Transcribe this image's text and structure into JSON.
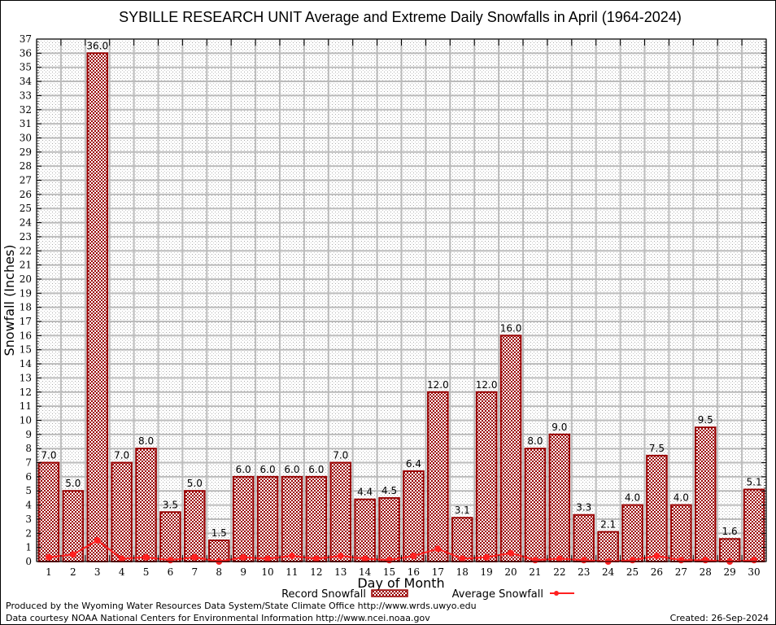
{
  "chart_data": {
    "type": "bar",
    "title": "SYBILLE RESEARCH UNIT Average and Extreme Daily Snowfalls in April (1964-2024)",
    "xlabel": "Day of Month",
    "ylabel": "Snowfall (Inches)",
    "ylim": [
      0,
      37
    ],
    "yticks": [
      0,
      1,
      2,
      3,
      4,
      5,
      6,
      7,
      8,
      9,
      10,
      11,
      12,
      13,
      14,
      15,
      16,
      17,
      18,
      19,
      20,
      21,
      22,
      23,
      24,
      25,
      26,
      27,
      28,
      29,
      30,
      31,
      32,
      33,
      34,
      35,
      36,
      37
    ],
    "categories": [
      "1",
      "2",
      "3",
      "4",
      "5",
      "6",
      "7",
      "8",
      "9",
      "10",
      "11",
      "12",
      "13",
      "14",
      "15",
      "16",
      "17",
      "18",
      "19",
      "20",
      "21",
      "22",
      "23",
      "24",
      "25",
      "26",
      "27",
      "28",
      "29",
      "30"
    ],
    "grid": true,
    "legend_position": "bottom-center",
    "series": [
      {
        "name": "Record Snowfall",
        "type": "bar",
        "color": "#990000",
        "values": [
          7.0,
          5.0,
          36.0,
          7.0,
          8.0,
          3.5,
          5.0,
          1.5,
          6.0,
          6.0,
          6.0,
          6.0,
          7.0,
          4.4,
          4.5,
          6.4,
          12.0,
          3.1,
          12.0,
          16.0,
          8.0,
          9.0,
          3.3,
          2.1,
          4.0,
          7.5,
          4.0,
          9.5,
          1.6,
          5.1
        ],
        "labels": [
          "7.0",
          "5.0",
          "36.0",
          "7.0",
          "8.0",
          "3.5",
          "5.0",
          "1.5",
          "6.0",
          "6.0",
          "6.0",
          "6.0",
          "7.0",
          "4.4",
          "4.5",
          "6.4",
          "12.0",
          "3.1",
          "12.0",
          "16.0",
          "8.0",
          "9.0",
          "3.3",
          "2.1",
          "4.0",
          "7.5",
          "4.0",
          "9.5",
          "1.6",
          "5.1"
        ]
      },
      {
        "name": "Average Snowfall",
        "type": "line",
        "color": "#ff2020",
        "values": [
          0.3,
          0.5,
          1.5,
          0.2,
          0.3,
          0.1,
          0.3,
          0.0,
          0.3,
          0.2,
          0.4,
          0.2,
          0.4,
          0.2,
          0.1,
          0.4,
          0.9,
          0.2,
          0.3,
          0.6,
          0.1,
          0.2,
          0.1,
          0.0,
          0.1,
          0.4,
          0.1,
          0.1,
          0.0,
          0.1
        ]
      }
    ]
  },
  "footer": {
    "produced_by": "Produced by the Wyoming Water Resources Data System/State Climate Office http://www.wrds.uwyo.edu",
    "data_courtesy": "Data courtesy NOAA National Centers for Environmental Information http://www.ncei.noaa.gov",
    "created": "Created: 26-Sep-2024"
  }
}
